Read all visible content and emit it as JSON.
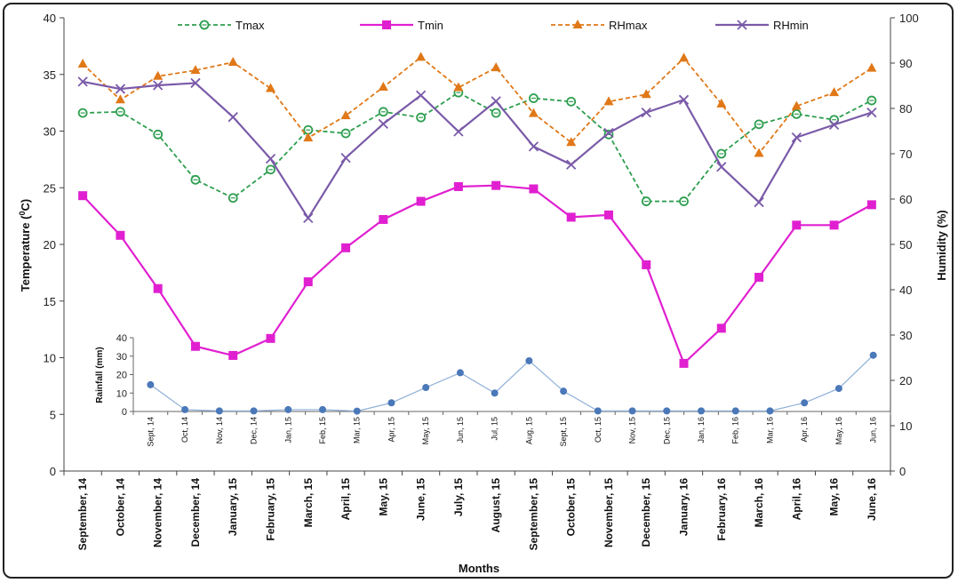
{
  "chart_data": [
    {
      "type": "line",
      "title": "",
      "xlabel": "Months",
      "ylabel_left": "Temperature (",
      "ylabel_left_sup": "0",
      "ylabel_left_end": "C)",
      "ylabel_right": "Humidity (%)",
      "ylim_left": [
        0,
        40
      ],
      "ylim_right": [
        0,
        100
      ],
      "yticks_left": [
        0,
        5,
        10,
        15,
        20,
        25,
        30,
        35,
        40
      ],
      "yticks_right": [
        0,
        10,
        20,
        30,
        40,
        50,
        60,
        70,
        80,
        90,
        100
      ],
      "legend_placement": "top",
      "categories": [
        "September, 14",
        "October, 14",
        "November, 14",
        "December, 14",
        "January, 15",
        "February, 15",
        "March, 15",
        "April, 15",
        "May, 15",
        "June, 15",
        "July, 15",
        "August, 15",
        "September, 15",
        "October, 15",
        "November, 15",
        "December, 15",
        "January, 16",
        "February, 16",
        "March, 16",
        "April, 16",
        "May, 16",
        "June, 16"
      ],
      "series": [
        {
          "name": "Tmax",
          "axis": "left",
          "color": "#2e9e4f",
          "marker": "circle-open",
          "dash": true,
          "values": [
            31.6,
            31.7,
            29.7,
            25.7,
            24.1,
            26.6,
            30.1,
            29.8,
            31.7,
            31.2,
            33.4,
            31.6,
            32.9,
            32.6,
            29.7,
            23.8,
            23.8,
            28.0,
            30.6,
            31.5,
            31.0,
            32.7
          ]
        },
        {
          "name": "Tmin",
          "axis": "left",
          "color": "#e020d0",
          "marker": "square",
          "dash": false,
          "values": [
            24.3,
            20.8,
            16.1,
            11.0,
            10.2,
            11.7,
            16.7,
            19.7,
            22.2,
            23.8,
            25.1,
            25.2,
            24.9,
            22.4,
            22.6,
            18.2,
            9.5,
            12.6,
            17.1,
            21.7,
            21.7,
            23.5
          ]
        },
        {
          "name": "RHmax",
          "axis": "right",
          "color": "#e07818",
          "marker": "triangle",
          "dash": true,
          "values": [
            89.8,
            81.9,
            87.1,
            88.4,
            90.2,
            84.4,
            73.5,
            78.4,
            84.7,
            91.3,
            84.6,
            89.0,
            78.9,
            72.5,
            81.5,
            83.1,
            91.1,
            81.0,
            70.1,
            80.5,
            83.5,
            88.9
          ]
        },
        {
          "name": "RHmin",
          "axis": "right",
          "color": "#7a5aa8",
          "marker": "x",
          "dash": false,
          "values": [
            85.9,
            84.3,
            85.1,
            85.6,
            78.1,
            68.9,
            55.8,
            69.1,
            76.6,
            82.9,
            74.9,
            81.6,
            71.6,
            67.6,
            74.6,
            79.1,
            81.9,
            67.1,
            59.3,
            73.6,
            76.4,
            79.1
          ]
        }
      ]
    },
    {
      "type": "line",
      "title": "",
      "xlabel": "",
      "ylabel": "Rainfall (mm)",
      "ylim": [
        0,
        40
      ],
      "yticks": [
        0,
        10,
        20,
        30,
        40
      ],
      "categories": [
        "Sept, 14",
        "Oct, 14",
        "Nov, 14",
        "Dec, 14",
        "Jan, 15",
        "Feb, 15",
        "Mar, 15",
        "Apr, 15",
        "May, 15",
        "Jun, 15",
        "Jul, 15",
        "Aug, 15",
        "Sept, 15",
        "Oct, 15",
        "Nov, 15",
        "Dec, 15",
        "Jan, 16",
        "Feb, 16",
        "Mar, 16",
        "Apr, 16",
        "May, 16",
        "Jun, 16"
      ],
      "series": [
        {
          "name": "",
          "color": "#4a78b8",
          "values": [
            14.5,
            1.0,
            0.3,
            0.3,
            1.0,
            1.0,
            0.2,
            4.7,
            13.0,
            21.0,
            10.0,
            27.5,
            11.0,
            0.3,
            0.3,
            0.3,
            0.3,
            0.3,
            0.3,
            4.7,
            12.5,
            30.5
          ]
        }
      ]
    }
  ]
}
